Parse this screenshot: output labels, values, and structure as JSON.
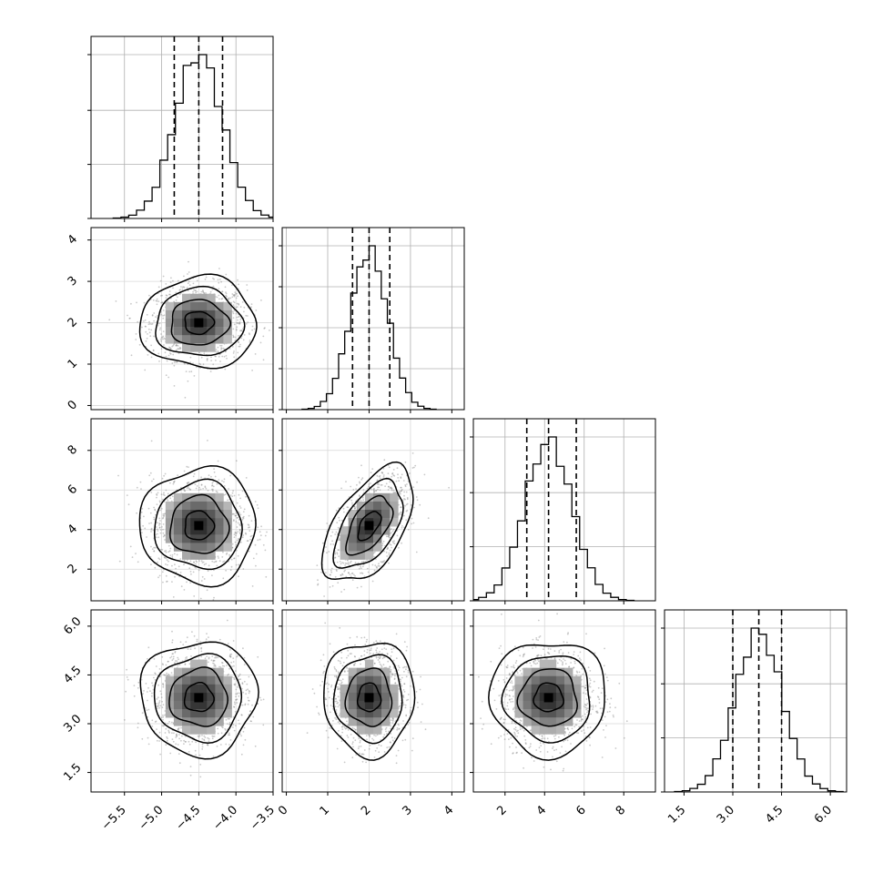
{
  "chart_data": {
    "type": "corner",
    "grid": true,
    "histogram_color": "#000000",
    "contour_color": "#000000",
    "scatter_color": "#888888",
    "variables": [
      {
        "range": [
          -5.95,
          -3.5
        ],
        "ticks": [
          -5.5,
          -5.0,
          -4.5,
          -4.0,
          -3.5
        ],
        "tick_labels": [
          "−5.5",
          "−5.0",
          "−4.5",
          "−4.0",
          "−3.5"
        ],
        "median": -4.5,
        "quantiles": [
          -4.83,
          -4.5,
          -4.18
        ],
        "std": 0.32,
        "hist_ticks": [
          0,
          0.33,
          0.66,
          1.0
        ]
      },
      {
        "range": [
          -0.1,
          4.3
        ],
        "ticks": [
          0,
          1,
          2,
          3,
          4
        ],
        "tick_labels": [
          "0",
          "1",
          "2",
          "3",
          "4"
        ],
        "median": 2.0,
        "quantiles": [
          1.6,
          2.0,
          2.5
        ],
        "std": 0.45,
        "hist_ticks": [
          0,
          0.25,
          0.5,
          0.75,
          1.0
        ]
      },
      {
        "range": [
          0.4,
          9.6
        ],
        "ticks": [
          2,
          4,
          6,
          8
        ],
        "tick_labels": [
          "2",
          "4",
          "6",
          "8"
        ],
        "median": 4.2,
        "quantiles": [
          3.1,
          4.2,
          5.6
        ],
        "std": 1.2,
        "hist_ticks": [
          0,
          0.33,
          0.66,
          1.0
        ]
      },
      {
        "range": [
          0.9,
          6.5
        ],
        "ticks": [
          1.5,
          3.0,
          4.5,
          6.0
        ],
        "tick_labels": [
          "1.5",
          "3.0",
          "4.5",
          "6.0"
        ],
        "median": 3.8,
        "quantiles": [
          3.0,
          3.8,
          4.5
        ],
        "std": 0.72,
        "hist_ticks": [
          0,
          0.33,
          0.66,
          1.0
        ]
      }
    ],
    "correlations": [
      {
        "row": 1,
        "col": 0,
        "rho": 0.0
      },
      {
        "row": 2,
        "col": 0,
        "rho": 0.0
      },
      {
        "row": 2,
        "col": 1,
        "rho": 0.55
      },
      {
        "row": 3,
        "col": 0,
        "rho": 0.0
      },
      {
        "row": 3,
        "col": 1,
        "rho": 0.0
      },
      {
        "row": 3,
        "col": 2,
        "rho": 0.0
      }
    ],
    "contour_levels_sigma": [
      0.5,
      1.0,
      1.5,
      2.0
    ]
  }
}
